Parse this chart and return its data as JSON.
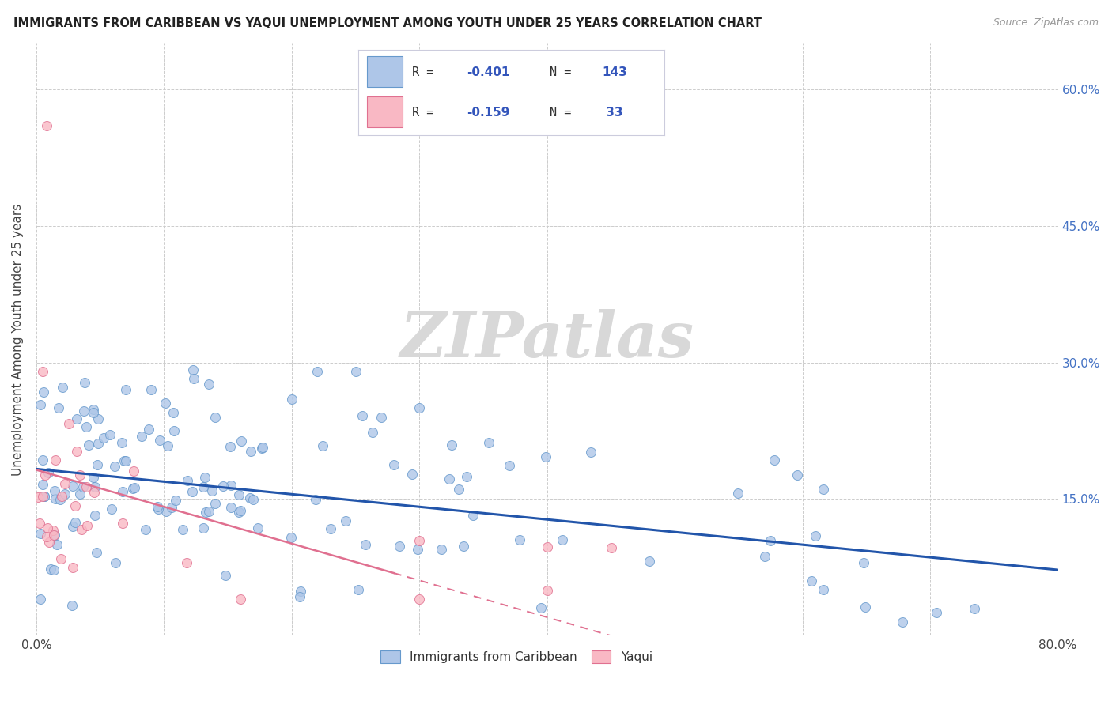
{
  "title": "IMMIGRANTS FROM CARIBBEAN VS YAQUI UNEMPLOYMENT AMONG YOUTH UNDER 25 YEARS CORRELATION CHART",
  "source": "Source: ZipAtlas.com",
  "ylabel": "Unemployment Among Youth under 25 years",
  "xlim": [
    0.0,
    0.8
  ],
  "ylim": [
    0.0,
    0.65
  ],
  "y_ticks": [
    0.0,
    0.15,
    0.3,
    0.45,
    0.6
  ],
  "color_blue_fill": "#aec6e8",
  "color_blue_edge": "#6699cc",
  "color_pink_fill": "#f9b8c4",
  "color_pink_edge": "#e07090",
  "color_line_blue": "#2255aa",
  "color_line_pink": "#e07090",
  "color_grid": "#cccccc",
  "color_right_tick": "#4472c4",
  "watermark_color": "#d8d8d8",
  "legend_box_color": "#f0f4ff",
  "legend_box_edge": "#bbbbcc"
}
